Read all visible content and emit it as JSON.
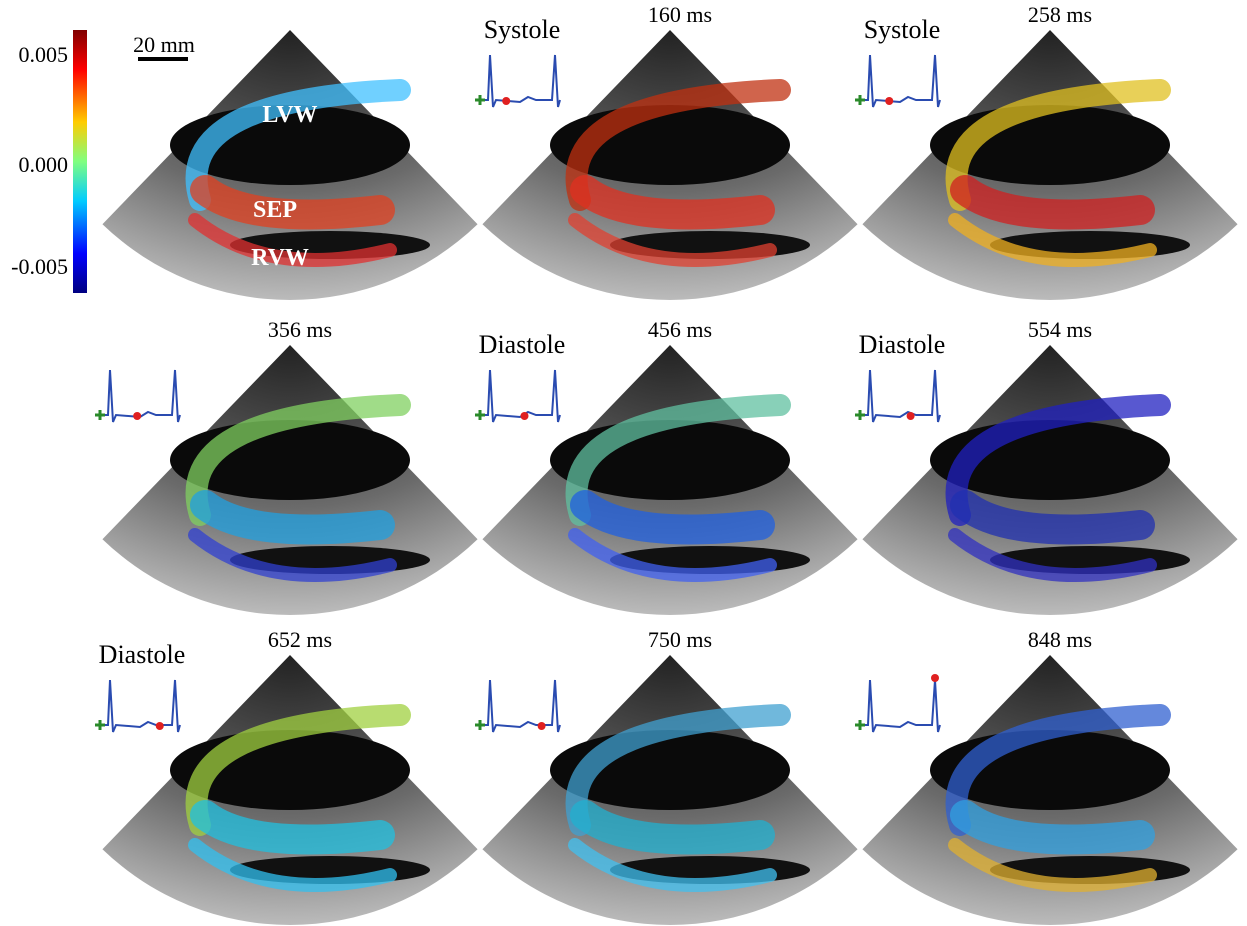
{
  "colorbar": {
    "labels": [
      "0.005",
      "0.000",
      "-0.005"
    ]
  },
  "scale_bar": "20 mm",
  "panels": [
    {
      "labels": [
        "LVW",
        "SEP",
        "RVW"
      ]
    },
    {
      "phase": "Systole",
      "time": "160 ms"
    },
    {
      "phase": "Systole",
      "time": "258 ms"
    },
    {
      "time": "356 ms"
    },
    {
      "phase": "Diastole",
      "time": "456 ms"
    },
    {
      "phase": "Diastole",
      "time": "554 ms"
    },
    {
      "phase": "Diastole",
      "time": "652 ms"
    },
    {
      "time": "750 ms"
    },
    {
      "time": "848 ms"
    }
  ]
}
